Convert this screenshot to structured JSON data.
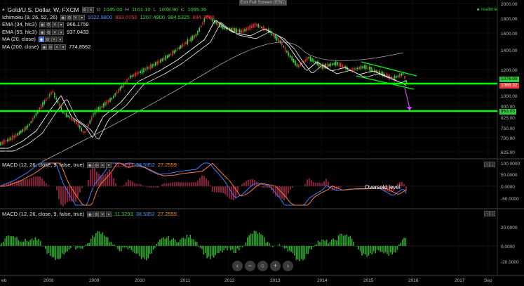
{
  "toolbar": {
    "exit_fullscreen": "Exit Full Screen (ESC)",
    "realtime": "realtime"
  },
  "symbol": {
    "name": "Gold/U.S. Dollar, W, FXCM",
    "o_label": "O",
    "o": "1045.00",
    "h_label": "H",
    "h": "1101.10",
    "l_label": "L",
    "l": "1038.90",
    "c_label": "C",
    "c": "1095.35"
  },
  "indicators": [
    {
      "label": "Ichimoku (9, 26, 52, 26)",
      "values": [
        "1022.9800",
        "993.0750",
        "1207.4900",
        "984.5325",
        "894.3500"
      ]
    },
    {
      "label": "EMA (34, hlc3)",
      "values": [
        "966.1759"
      ]
    },
    {
      "label": "EMA (55, hlc3)",
      "values": [
        "937.0433"
      ]
    },
    {
      "label": "MA (20, close)",
      "values": []
    },
    {
      "label": "MA (200, close)",
      "values": [
        "774.8562"
      ]
    }
  ],
  "macd1": {
    "label": "MACD (12, 26, close, 9, false, true)",
    "values": [
      "11.3293",
      "38.5852",
      "27.2559"
    ],
    "annotation": "Oversold level",
    "ticks": [
      "100.0000",
      "50.0000",
      "0.0000",
      "-50.0000"
    ]
  },
  "macd2": {
    "label": "MACD (12, 26, close, 9, false, true)",
    "values": [
      "11.3293",
      "38.5852",
      "27.2559"
    ],
    "ticks": [
      "20.0000",
      "0.0000",
      "-20.0000"
    ]
  },
  "price_axis": {
    "ticks": [
      "2000.00",
      "1800.00",
      "1600.00",
      "1400.00",
      "1200.00",
      "1100.00",
      "1000.00",
      "900.00",
      "825.00",
      "750.00",
      "700.00",
      "625.00"
    ],
    "tags": [
      {
        "text": "1076.00",
        "color": "#2ecc40"
      },
      {
        "text": "1066.32",
        "color": "#e83a3a"
      },
      {
        "text": "863.03",
        "color": "#2ecc40"
      }
    ]
  },
  "time_axis": [
    "eb",
    "2008",
    "2009",
    "2010",
    "2011",
    "2012",
    "2013",
    "2014",
    "2015",
    "2016",
    "2017",
    "Sep"
  ],
  "zoom": [
    "‹",
    "−",
    "○",
    "+",
    "›"
  ],
  "colors": {
    "support": "#00ff00",
    "trend": "#00ff00",
    "arrow": "#d33cff",
    "macd_line": "#3d7dff",
    "signal": "#ff7a3a",
    "hist_up": "#2da82d",
    "hist_down": "#8c1a3a"
  }
}
